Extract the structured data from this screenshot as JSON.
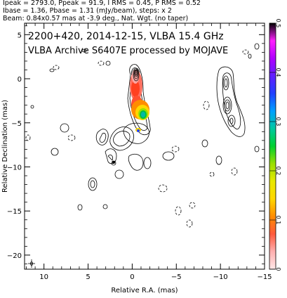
{
  "header": {
    "line1": "Ipeak = 2793.0, Ppeak = 91.9, I RMS = 0.45, P RMS = 0.52",
    "line2": "Ibase = 1.36, Pbase = 1.31 (mJy/beam), steps: x 2",
    "line3": "Beam: 0.84x0.57 mas at -3.9 deg., Nat. Wgt. (no taper)"
  },
  "chart_data": {
    "type": "heatmap",
    "title_line1": "2200+420, 2014-12-15, VLBA 15.4 GHz",
    "title_line2": "VLBA Archive S6407E processed by MOJAVE",
    "xlabel": "Relative R.A. (mas)",
    "ylabel": "Relative Declination (mas)",
    "xlim": [
      12.2,
      -15
    ],
    "ylim": [
      -21.6,
      6.3
    ],
    "x_ticks": [
      10,
      5,
      0,
      -5,
      -10,
      -15
    ],
    "y_ticks": [
      5,
      0,
      -5,
      -10,
      -15,
      -20
    ],
    "colorbar": {
      "min": 0,
      "max": 0.5,
      "ticks": [
        0,
        0.1,
        0.2,
        0.3,
        0.4,
        0.5
      ],
      "colors": [
        "#ffe8e8",
        "#ffb0b0",
        "#ff5a3c",
        "#ff8c00",
        "#ffd700",
        "#e8e800",
        "#9adf00",
        "#00d030",
        "#00c8a0",
        "#00a0ff",
        "#2040ff",
        "#6020ff",
        "#b000ff",
        "#ff20ff",
        "#000000"
      ]
    },
    "core_peak": {
      "x": 0,
      "y": 0
    },
    "jet_features": [
      {
        "x": 0.3,
        "y": -2.2
      },
      {
        "x": -0.6,
        "y": -4.2
      },
      {
        "x": -0.4,
        "y": -5.8
      }
    ],
    "beam": {
      "major_mas": 0.84,
      "minor_mas": 0.57,
      "pa_deg": -3.9
    }
  }
}
